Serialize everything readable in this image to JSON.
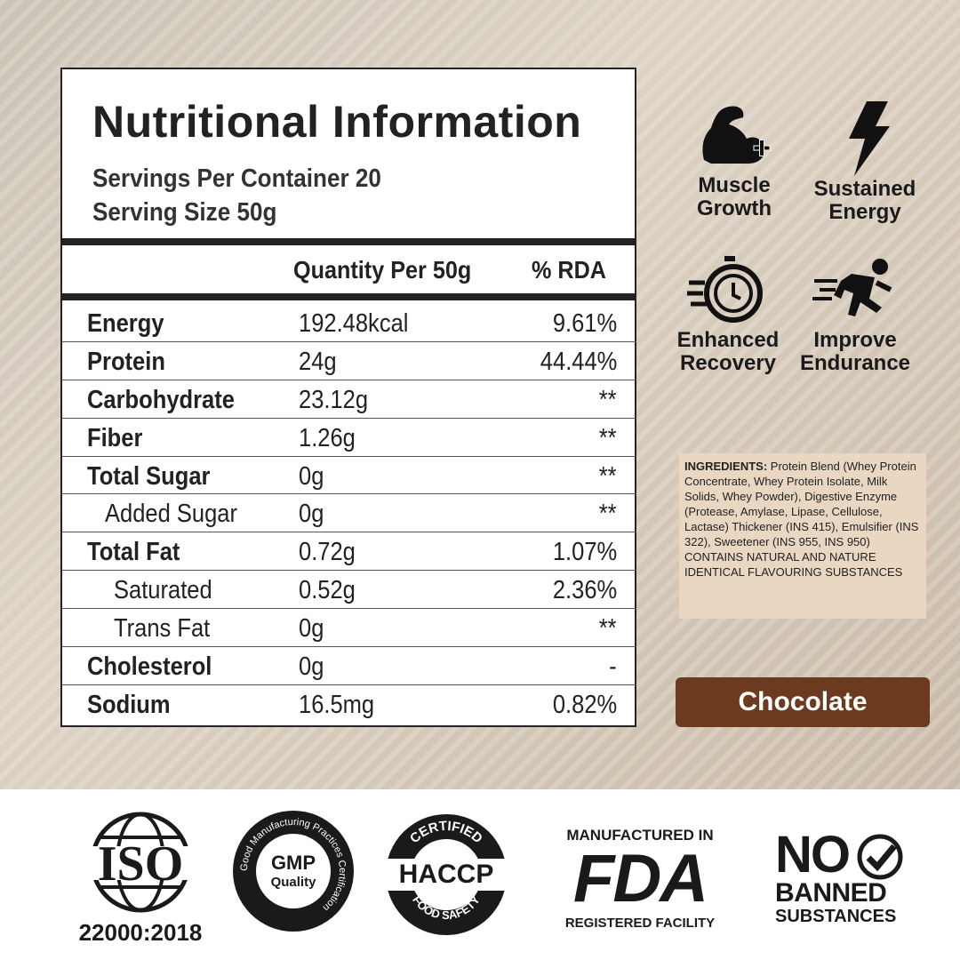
{
  "nutrition": {
    "title": "Nutritional Information",
    "servings_per_container": "Servings Per Container 20",
    "serving_size": "Serving Size 50g",
    "col_quantity": "Quantity Per 50g",
    "col_rda": "% RDA",
    "rows": [
      {
        "name": "Energy",
        "qty": "192.48kcal",
        "rda": "9.61%"
      },
      {
        "name": "Protein",
        "qty": "24g",
        "rda": "44.44%"
      },
      {
        "name": "Carbohydrate",
        "qty": "23.12g",
        "rda": "**"
      },
      {
        "name": "Fiber",
        "qty": "1.26g",
        "rda": "**"
      },
      {
        "name": "Total Sugar",
        "qty": "0g",
        "rda": "**"
      },
      {
        "name": "Added Sugar",
        "qty": "0g",
        "rda": "**"
      },
      {
        "name": "Total Fat",
        "qty": "0.72g",
        "rda": "1.07%"
      },
      {
        "name": "Saturated",
        "qty": "0.52g",
        "rda": "2.36%"
      },
      {
        "name": "Trans Fat",
        "qty": "0g",
        "rda": "**"
      },
      {
        "name": "Cholesterol",
        "qty": "0g",
        "rda": "-"
      },
      {
        "name": "Sodium",
        "qty": "16.5mg",
        "rda": "0.82%"
      }
    ]
  },
  "benefits": {
    "muscle_1": "Muscle",
    "muscle_2": "Growth",
    "energy_1": "Sustained",
    "energy_2": "Energy",
    "recovery_1": "Enhanced",
    "recovery_2": "Recovery",
    "endurance_1": "Improve",
    "endurance_2": "Endurance"
  },
  "ingredients": {
    "label": "INGREDIENTS:",
    "text": " Protein Blend (Whey Protein Concentrate, Whey Protein Isolate, Milk Solids, Whey Powder), Digestive Enzyme (Protease, Amylase, Lipase, Cellulose, Lactase) Thickener (INS 415), Emulsifier (INS 322), Sweetener (INS 955, INS 950) CONTAINS NATURAL AND NATURE IDENTICAL FLAVOURING SUBSTANCES"
  },
  "flavor": "Chocolate",
  "certifications": {
    "iso": "ISO",
    "iso_number": "22000:2018",
    "gmp_ring": "Good Manufacturing Practices Certification",
    "gmp": "GMP",
    "gmp_quality": "Quality",
    "haccp_top": "CERTIFIED",
    "haccp": "HACCP",
    "haccp_bottom": "FOOD SAFETY",
    "fda_top": "MANUFACTURED IN",
    "fda": "FDA",
    "fda_bottom": "REGISTERED FACILITY",
    "nobanned_no": "NO",
    "nobanned_banned": "BANNED",
    "nobanned_substances": "SUBSTANCES"
  },
  "colors": {
    "flavor_button": "#6b3a1f",
    "ingredients_bg": "#ead7c2"
  }
}
